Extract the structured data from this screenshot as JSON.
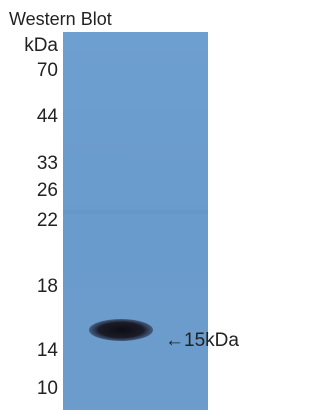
{
  "title": "Western Blot",
  "unit_label": "kDa",
  "markers": [
    "70",
    "44",
    "33",
    "26",
    "22",
    "18",
    "14",
    "10"
  ],
  "band_annotation": "←15kDa"
}
